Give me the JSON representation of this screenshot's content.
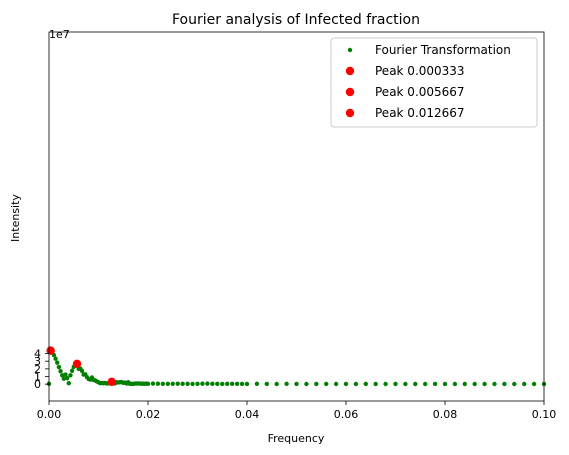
{
  "chart_data": {
    "type": "scatter",
    "title": "Fourier analysis of Infected fraction",
    "xlabel": "Frequency",
    "ylabel": "Intensity",
    "y_offset_label": "1e7",
    "xlim": [
      0,
      0.1
    ],
    "ylim": [
      -2.2,
      46.0
    ],
    "y_units_scale": 10000000,
    "x_ticks": [
      0,
      0.02,
      0.04,
      0.06,
      0.08,
      0.1
    ],
    "x_tick_labels": [
      "0.00",
      "0.02",
      "0.04",
      "0.06",
      "0.08",
      "0.10"
    ],
    "y_ticks": [
      0,
      1,
      2,
      3,
      4
    ],
    "y_tick_labels": [
      "0",
      "1",
      "2",
      "3",
      "4"
    ],
    "grid": false,
    "legend_position": "top-right",
    "colors": {
      "fourier": "#008000",
      "peak": "#ff0000"
    },
    "series": [
      {
        "name": "Fourier Transformation",
        "marker": "small-dot",
        "color": "#008000",
        "x": [
          0.0,
          0.000333,
          0.000667,
          0.001,
          0.001333,
          0.001667,
          0.002,
          0.002333,
          0.002667,
          0.003,
          0.003333,
          0.003667,
          0.004,
          0.004333,
          0.004667,
          0.005,
          0.005333,
          0.005667,
          0.006,
          0.006333,
          0.006667,
          0.007,
          0.007333,
          0.007667,
          0.008,
          0.008333,
          0.008667,
          0.009,
          0.009333,
          0.009667,
          0.01,
          0.010333,
          0.010667,
          0.011,
          0.011333,
          0.011667,
          0.012,
          0.012333,
          0.012667,
          0.013,
          0.013333,
          0.013667,
          0.014,
          0.014333,
          0.014667,
          0.015,
          0.015333,
          0.015667,
          0.016,
          0.016333,
          0.016667,
          0.017,
          0.017333,
          0.017667,
          0.018,
          0.018333,
          0.018667,
          0.019,
          0.019333,
          0.019667,
          0.02,
          0.021,
          0.022,
          0.023,
          0.024,
          0.025,
          0.026,
          0.027,
          0.028,
          0.029,
          0.03,
          0.031,
          0.032,
          0.033,
          0.034,
          0.035,
          0.036,
          0.037,
          0.038,
          0.039,
          0.04,
          0.042,
          0.044,
          0.046,
          0.048,
          0.05,
          0.052,
          0.054,
          0.056,
          0.058,
          0.06,
          0.062,
          0.064,
          0.066,
          0.068,
          0.07,
          0.072,
          0.074,
          0.076,
          0.078,
          0.08,
          0.082,
          0.084,
          0.086,
          0.088,
          0.09,
          0.092,
          0.094,
          0.096,
          0.098,
          0.1
        ],
        "y": [
          0.05,
          4.4,
          4.15,
          3.8,
          3.33,
          2.8,
          2.23,
          1.7,
          1.15,
          0.72,
          1.25,
          0.78,
          0.12,
          1.15,
          1.75,
          2.27,
          2.45,
          2.65,
          2.0,
          2.03,
          1.73,
          1.25,
          1.28,
          0.93,
          0.68,
          0.6,
          0.87,
          0.55,
          0.48,
          0.35,
          0.25,
          0.13,
          0.15,
          0.12,
          0.14,
          0.1,
          0.12,
          0.22,
          0.3,
          0.13,
          0.1,
          0.25,
          0.22,
          0.25,
          0.27,
          0.18,
          0.2,
          0.08,
          0.25,
          0.05,
          0.04,
          0.03,
          0.07,
          0.08,
          0.1,
          0.08,
          0.06,
          0.06,
          0.05,
          0.08,
          0.05,
          0.07,
          0.06,
          0.04,
          0.05,
          0.05,
          0.06,
          0.04,
          0.05,
          0.03,
          0.04,
          0.06,
          0.07,
          0.05,
          0.04,
          0.03,
          0.04,
          0.04,
          0.05,
          0.03,
          0.03,
          0.04,
          0.03,
          0.02,
          0.04,
          0.03,
          0.02,
          0.03,
          0.03,
          0.02,
          0.03,
          0.02,
          0.03,
          0.02,
          0.02,
          0.03,
          0.02,
          0.02,
          0.02,
          0.03,
          0.02,
          0.02,
          0.02,
          0.02,
          0.02,
          0.02,
          0.02,
          0.02,
          0.02,
          0.02,
          0.02
        ]
      },
      {
        "name": "Peak 0.000333",
        "marker": "dot",
        "color": "#ff0000",
        "x": [
          0.000333
        ],
        "y": [
          4.38
        ]
      },
      {
        "name": "Peak 0.005667",
        "marker": "dot",
        "color": "#ff0000",
        "x": [
          0.005667
        ],
        "y": [
          2.66
        ]
      },
      {
        "name": "Peak 0.012667",
        "marker": "dot",
        "color": "#ff0000",
        "x": [
          0.012667
        ],
        "y": [
          0.3
        ]
      }
    ]
  }
}
